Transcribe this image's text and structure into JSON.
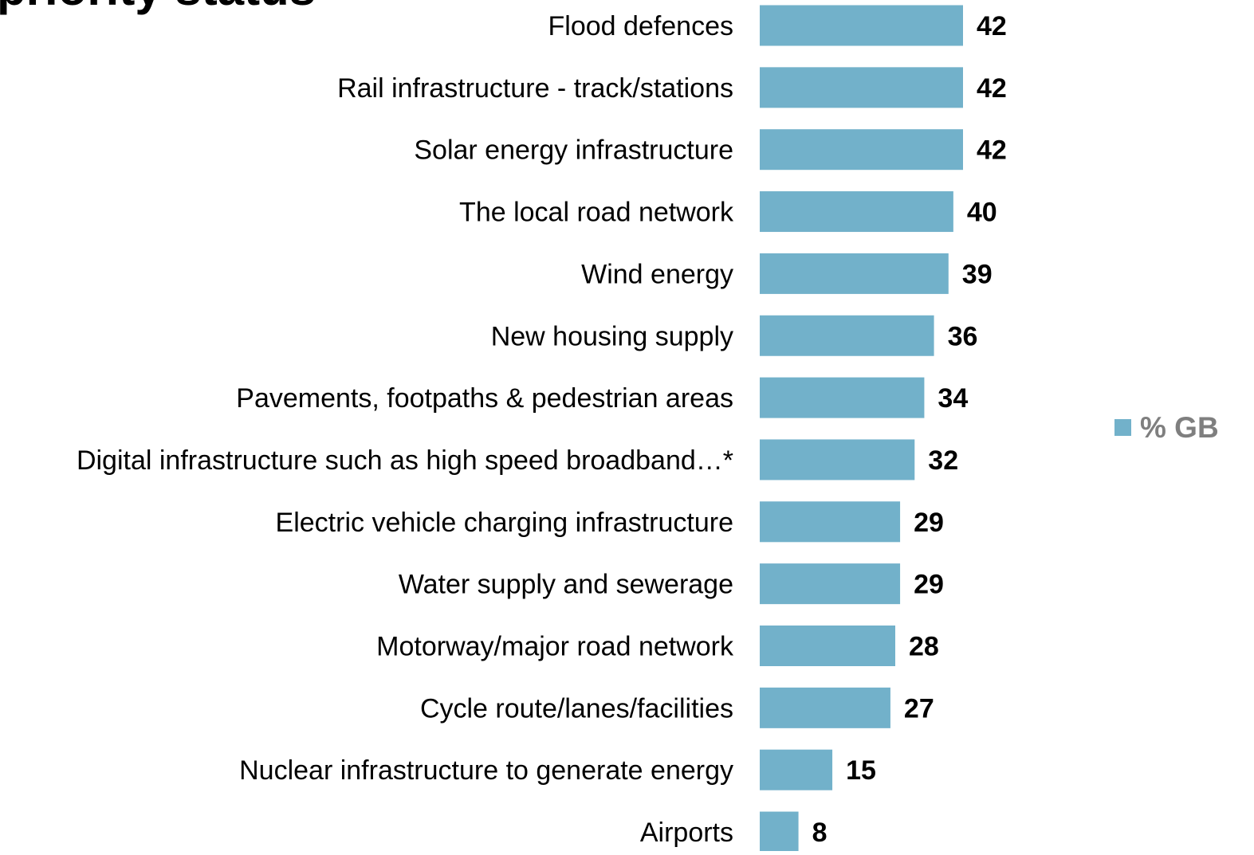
{
  "chart_data": {
    "type": "bar",
    "orientation": "horizontal",
    "title": "priority status",
    "categories": [
      "Flood defences",
      "Rail infrastructure - track/stations",
      "Solar energy infrastructure",
      "The local road network",
      "Wind energy",
      "New housing supply",
      "Pavements, footpaths & pedestrian areas",
      "Digital infrastructure such as high speed broadband…*",
      "Electric vehicle charging infrastructure",
      "Water supply and sewerage",
      "Motorway/major road network",
      "Cycle route/lanes/facilities",
      "Nuclear infrastructure to generate energy",
      "Airports"
    ],
    "series": [
      {
        "name": "% GB",
        "color": "#72B1CA",
        "values": [
          42,
          42,
          42,
          40,
          39,
          36,
          34,
          32,
          29,
          29,
          28,
          27,
          15,
          8
        ]
      }
    ],
    "xlabel": "",
    "ylabel": "",
    "xlim": [
      0,
      42
    ],
    "grid": false,
    "data_labels": true,
    "legend": {
      "placement": "right",
      "entries": [
        "% GB"
      ]
    }
  }
}
